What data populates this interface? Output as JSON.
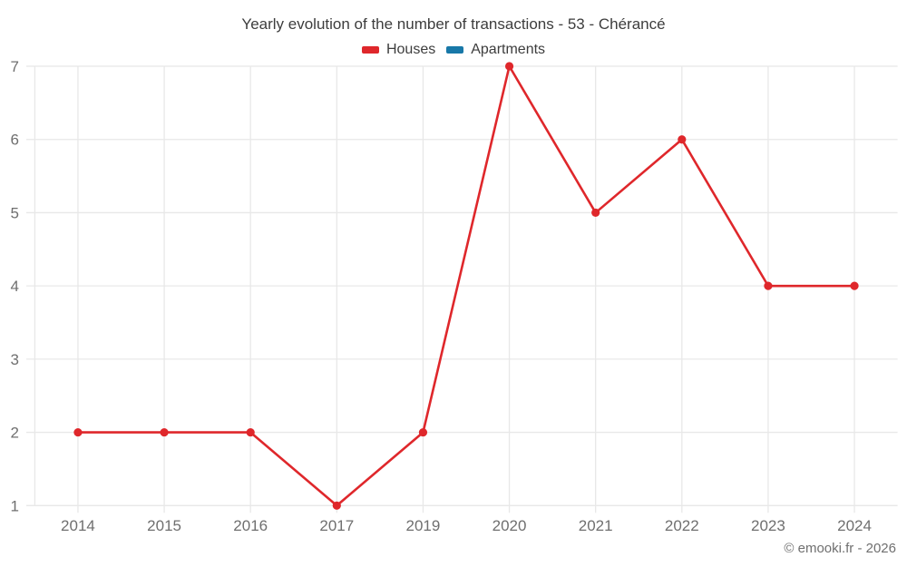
{
  "page": {
    "credits": "© emooki.fr - 2026"
  },
  "chart_data": {
    "type": "line",
    "title": "Yearly evolution of the number of transactions - 53 - Chérancé",
    "categories": [
      "2014",
      "2015",
      "2016",
      "2017",
      "2019",
      "2020",
      "2021",
      "2022",
      "2023",
      "2024"
    ],
    "series": [
      {
        "name": "Houses",
        "color": "#df272b",
        "values": [
          2,
          2,
          2,
          1,
          2,
          7,
          5,
          6,
          4,
          4
        ]
      },
      {
        "name": "Apartments",
        "color": "#1878a8",
        "values": []
      }
    ],
    "yticks": [
      1,
      2,
      3,
      4,
      5,
      6,
      7
    ],
    "ylim": [
      1,
      7
    ],
    "xlabel": "",
    "ylabel": "",
    "grid": true,
    "legend_position": "top",
    "marker": "circle",
    "footer": "© emooki.fr - 2026"
  },
  "colors": {
    "title_text": "#3d3d3d",
    "axis_label_text": "#6f6f6f",
    "grid_line": "#e8e8e8",
    "background": "#ffffff",
    "houses_series": "#df272b",
    "apartments_series": "#1878a8"
  }
}
